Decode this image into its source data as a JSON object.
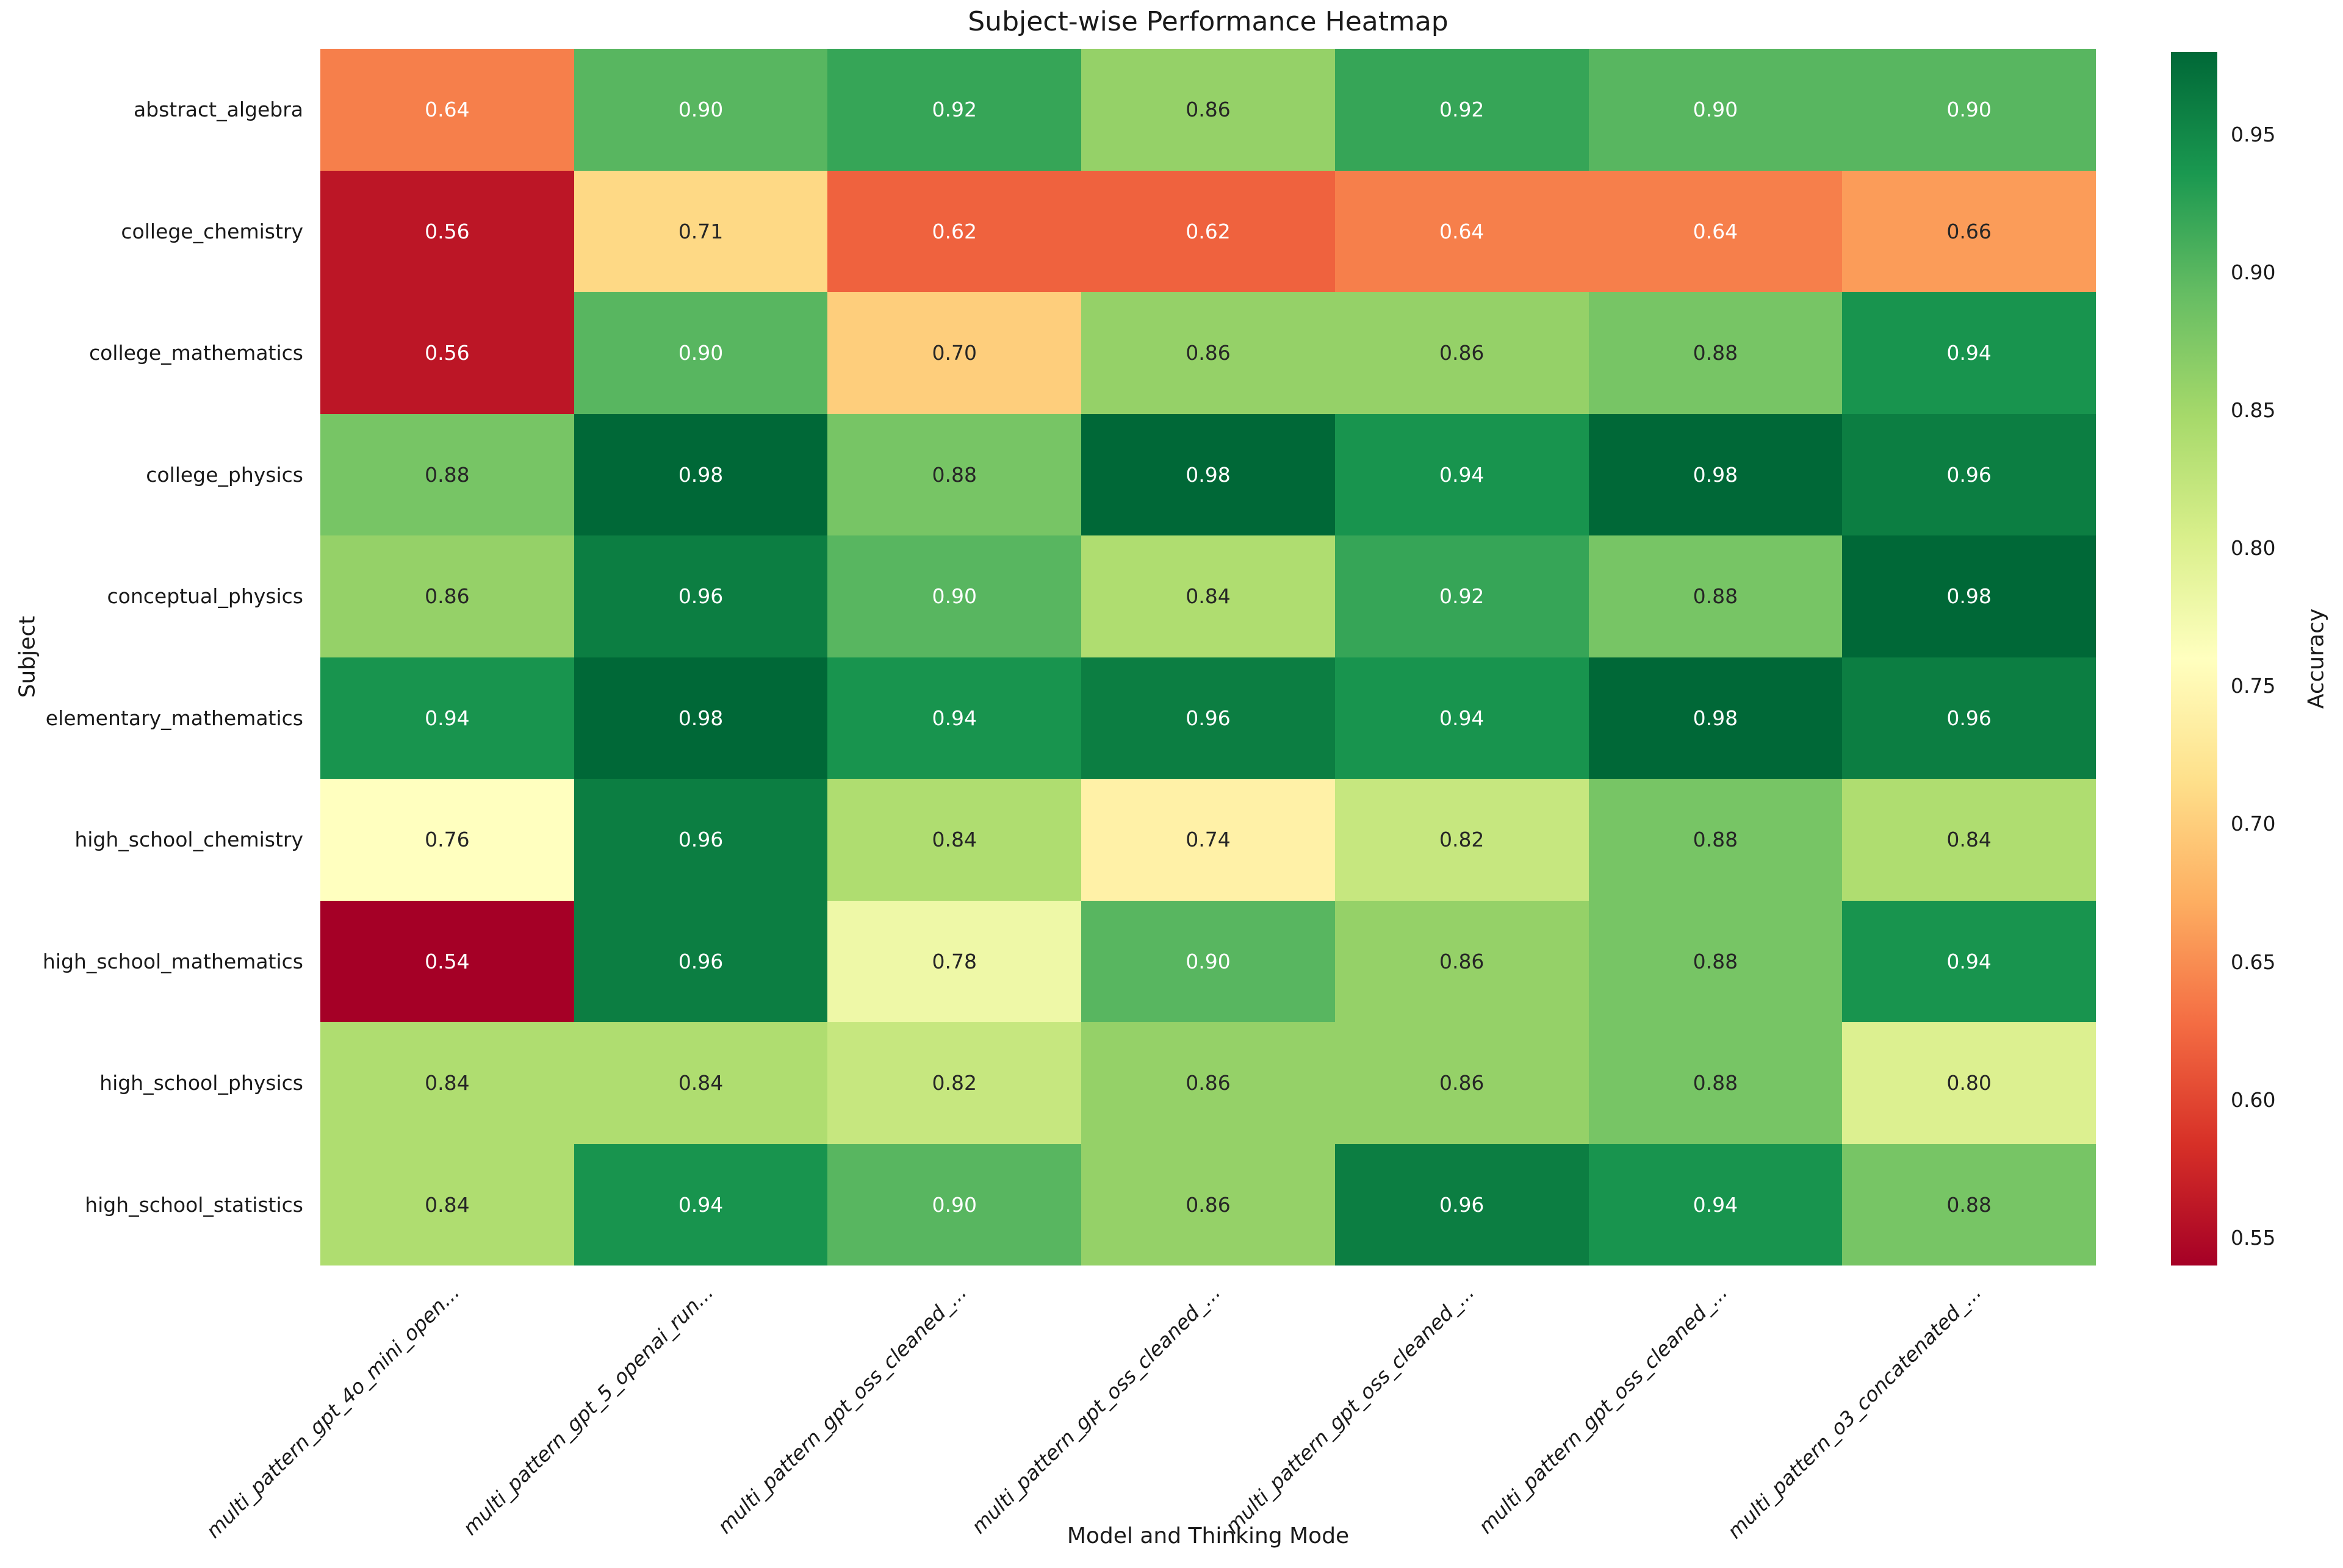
{
  "chart": {
    "title": "Subject-wise Performance Heatmap",
    "x_axis_label": "Model and Thinking Mode",
    "y_axis_label": "Subject",
    "colorbar_label": "Accuracy"
  },
  "chart_data": {
    "type": "heatmap",
    "title": "Subject-wise Performance Heatmap",
    "xlabel": "Model and Thinking Mode",
    "ylabel": "Subject",
    "rows": [
      "abstract_algebra",
      "college_chemistry",
      "college_mathematics",
      "college_physics",
      "conceptual_physics",
      "elementary_mathematics",
      "high_school_chemistry",
      "high_school_mathematics",
      "high_school_physics",
      "high_school_statistics"
    ],
    "columns": [
      "multi_pattern_gpt_4o_mini_open...",
      "multi_pattern_gpt_5_openai_run...",
      "multi_pattern_gpt_oss_cleaned_...",
      "multi_pattern_gpt_oss_cleaned_...",
      "multi_pattern_gpt_oss_cleaned_...",
      "multi_pattern_gpt_oss_cleaned_...",
      "multi_pattern_o3_concatenated_..."
    ],
    "values": [
      [
        0.64,
        0.9,
        0.92,
        0.86,
        0.92,
        0.9,
        0.9
      ],
      [
        0.56,
        0.71,
        0.62,
        0.62,
        0.64,
        0.64,
        0.66
      ],
      [
        0.56,
        0.9,
        0.7,
        0.86,
        0.86,
        0.88,
        0.94
      ],
      [
        0.88,
        0.98,
        0.88,
        0.98,
        0.94,
        0.98,
        0.96
      ],
      [
        0.86,
        0.96,
        0.9,
        0.84,
        0.92,
        0.88,
        0.98
      ],
      [
        0.94,
        0.98,
        0.94,
        0.96,
        0.94,
        0.98,
        0.96
      ],
      [
        0.76,
        0.96,
        0.84,
        0.74,
        0.82,
        0.88,
        0.84
      ],
      [
        0.54,
        0.96,
        0.78,
        0.9,
        0.86,
        0.88,
        0.94
      ],
      [
        0.84,
        0.84,
        0.82,
        0.86,
        0.86,
        0.88,
        0.8
      ],
      [
        0.84,
        0.94,
        0.9,
        0.86,
        0.96,
        0.94,
        0.88
      ]
    ],
    "vmin": 0.54,
    "vmax": 0.98,
    "colormap": "RdYlGn",
    "colormap_stops": [
      "#a50026",
      "#d73027",
      "#f46d43",
      "#fdae61",
      "#fee08b",
      "#ffffbf",
      "#d9ef8b",
      "#a6d96a",
      "#66bd63",
      "#1a9850",
      "#006837"
    ],
    "annotation_dark_color": "#262626",
    "annotation_light_color": "#ffffff",
    "legend_position": "right",
    "grid": false,
    "colorbar": {
      "label": "Accuracy",
      "ticks": [
        0.95,
        0.9,
        0.85,
        0.8,
        0.75,
        0.7,
        0.65,
        0.6,
        0.55
      ]
    }
  }
}
